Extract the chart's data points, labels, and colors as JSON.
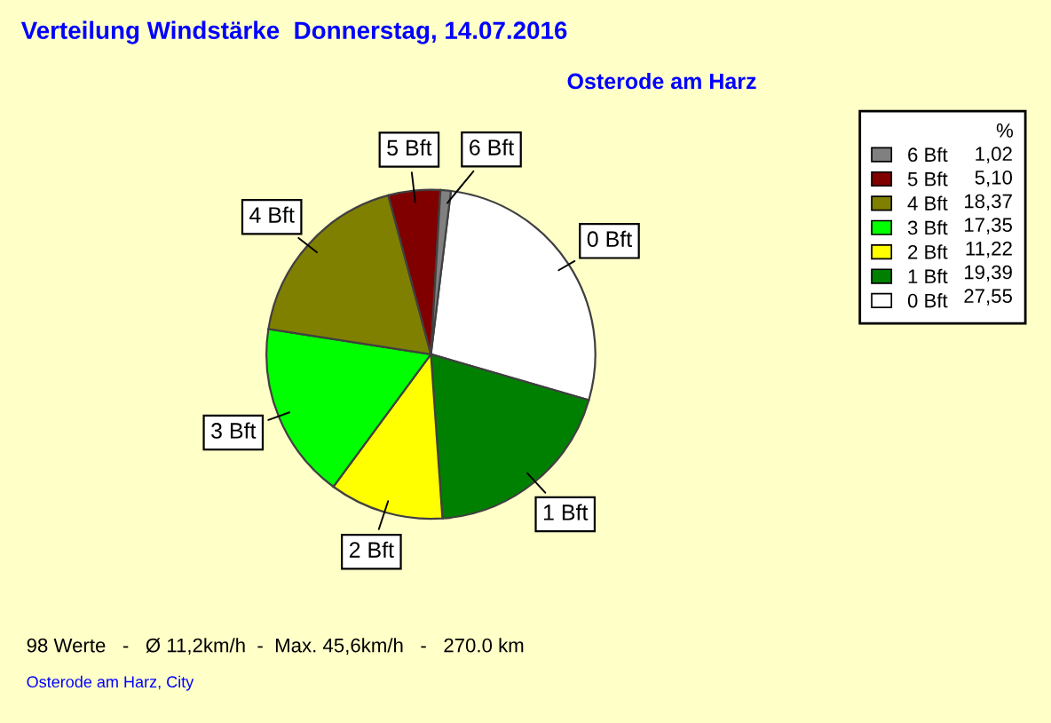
{
  "chart_data": {
    "type": "pie",
    "title": "Verteilung Windstärke  Donnerstag, 14.07.2016",
    "subtitle": "Osterode am Harz",
    "categories": [
      "0 Bft",
      "1 Bft",
      "2 Bft",
      "3 Bft",
      "4 Bft",
      "5 Bft",
      "6 Bft"
    ],
    "values": [
      27.55,
      19.39,
      11.22,
      17.35,
      18.37,
      5.1,
      1.02
    ],
    "value_labels": [
      "27,55",
      "19,39",
      "11,22",
      "17,35",
      "18,37",
      "5,10",
      "1,02"
    ],
    "colors": [
      "#ffffff",
      "#008000",
      "#ffff00",
      "#00ff00",
      "#808000",
      "#800000",
      "#808080"
    ],
    "legend_title": "%",
    "legend": "top right",
    "annotations": [
      "98 Werte   -   Ø 11,2km/h  -  Max. 45,6km/h   -   270.0 km",
      "Osterode am Harz, City"
    ]
  }
}
